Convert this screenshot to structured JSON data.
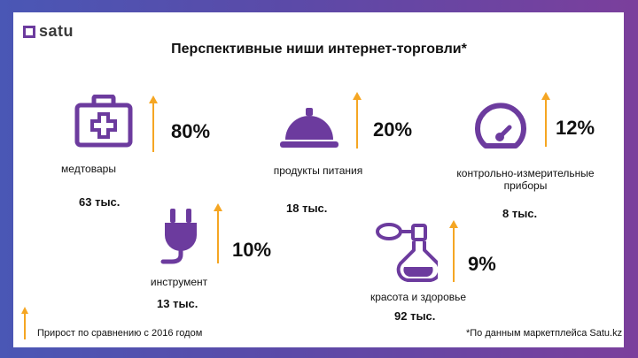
{
  "logo": {
    "text": "satu"
  },
  "title": "Перспективные ниши интернет-торговли*",
  "categories": [
    {
      "label": "медтовары",
      "growth": "80%",
      "count": "63 тыс."
    },
    {
      "label": "продукты питания",
      "growth": "20%",
      "count": "18 тыс."
    },
    {
      "label": "контрольно-измерительные приборы",
      "growth": "12%",
      "count": "8 тыс."
    },
    {
      "label": "инструмент",
      "growth": "10%",
      "count": "13 тыс."
    },
    {
      "label": "красота и здоровье",
      "growth": "9%",
      "count": "92 тыс."
    }
  ],
  "legend": {
    "text": "Прирост по сравнению с 2016 годом"
  },
  "source_note": "*По данным маркетплейса Satu.kz",
  "colors": {
    "accent_purple": "#6c3b9e",
    "arrow_orange": "#f5a623"
  }
}
